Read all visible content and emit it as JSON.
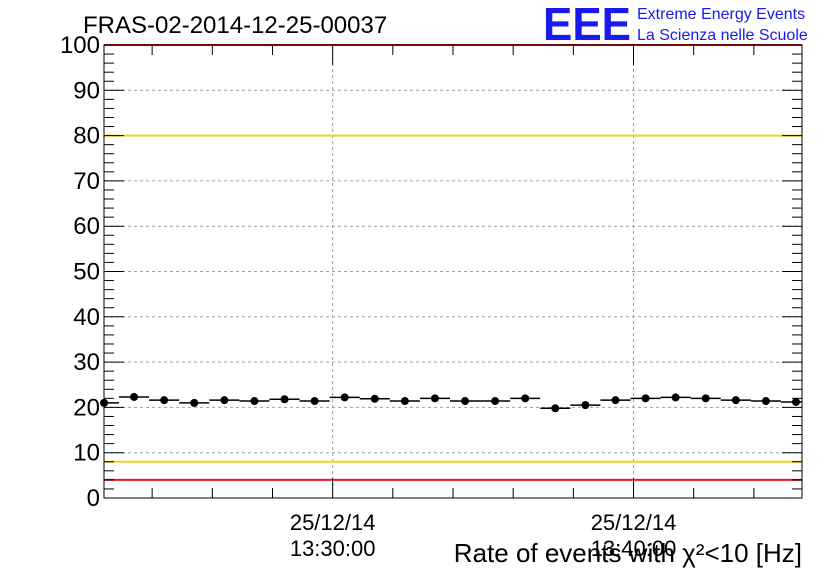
{
  "chart_data": {
    "type": "scatter",
    "title": "FRAS-02-2014-12-25-00037",
    "xlabel": "Rate of events with χ²<10 [Hz]",
    "ylabel": "",
    "ylim": [
      0,
      100
    ],
    "yticks": [
      "0",
      "10",
      "20",
      "30",
      "40",
      "50",
      "60",
      "70",
      "80",
      "90",
      "100"
    ],
    "xlim": [
      "25/12/14 13:22:24",
      "25/12/14 13:45:36"
    ],
    "xticks": [
      {
        "time": "25/12/14 13:30:00",
        "date": "25/12/14",
        "clock": "13:30:00"
      },
      {
        "time": "25/12/14 13:40:00",
        "date": "25/12/14",
        "clock": "13:40:00"
      }
    ],
    "grid": true,
    "series": [
      {
        "x": [
          "25/12/14 13:22:24",
          "25/12/14 13:23:24",
          "25/12/14 13:24:24",
          "25/12/14 13:25:24",
          "25/12/14 13:26:24",
          "25/12/14 13:27:24",
          "25/12/14 13:28:24",
          "25/12/14 13:29:24",
          "25/12/14 13:30:24",
          "25/12/14 13:31:24",
          "25/12/14 13:32:24",
          "25/12/14 13:33:24",
          "25/12/14 13:34:24",
          "25/12/14 13:35:24",
          "25/12/14 13:36:24",
          "25/12/14 13:37:24",
          "25/12/14 13:38:24",
          "25/12/14 13:39:24",
          "25/12/14 13:40:24",
          "25/12/14 13:41:24",
          "25/12/14 13:42:24",
          "25/12/14 13:43:24",
          "25/12/14 13:44:24",
          "25/12/14 13:45:24"
        ],
        "values": [
          21.0,
          22.3,
          21.6,
          21.0,
          21.6,
          21.4,
          21.8,
          21.4,
          22.2,
          21.9,
          21.4,
          22.0,
          21.4,
          21.4,
          22.0,
          19.8,
          20.5,
          21.6,
          22.0,
          22.2,
          22.0,
          21.6,
          21.4,
          21.2
        ]
      }
    ],
    "reference_lines": [
      {
        "value": 100,
        "color": "#e8141e"
      },
      {
        "value": 80,
        "color": "#f2d21c"
      },
      {
        "value": 8,
        "color": "#f2d21c"
      },
      {
        "value": 4,
        "color": "#e8141e"
      }
    ]
  },
  "logo": {
    "mark": "EEE",
    "line1": "Extreme Energy Events",
    "line2": "La Scienza nelle Scuole",
    "color": "#1a1aee"
  }
}
